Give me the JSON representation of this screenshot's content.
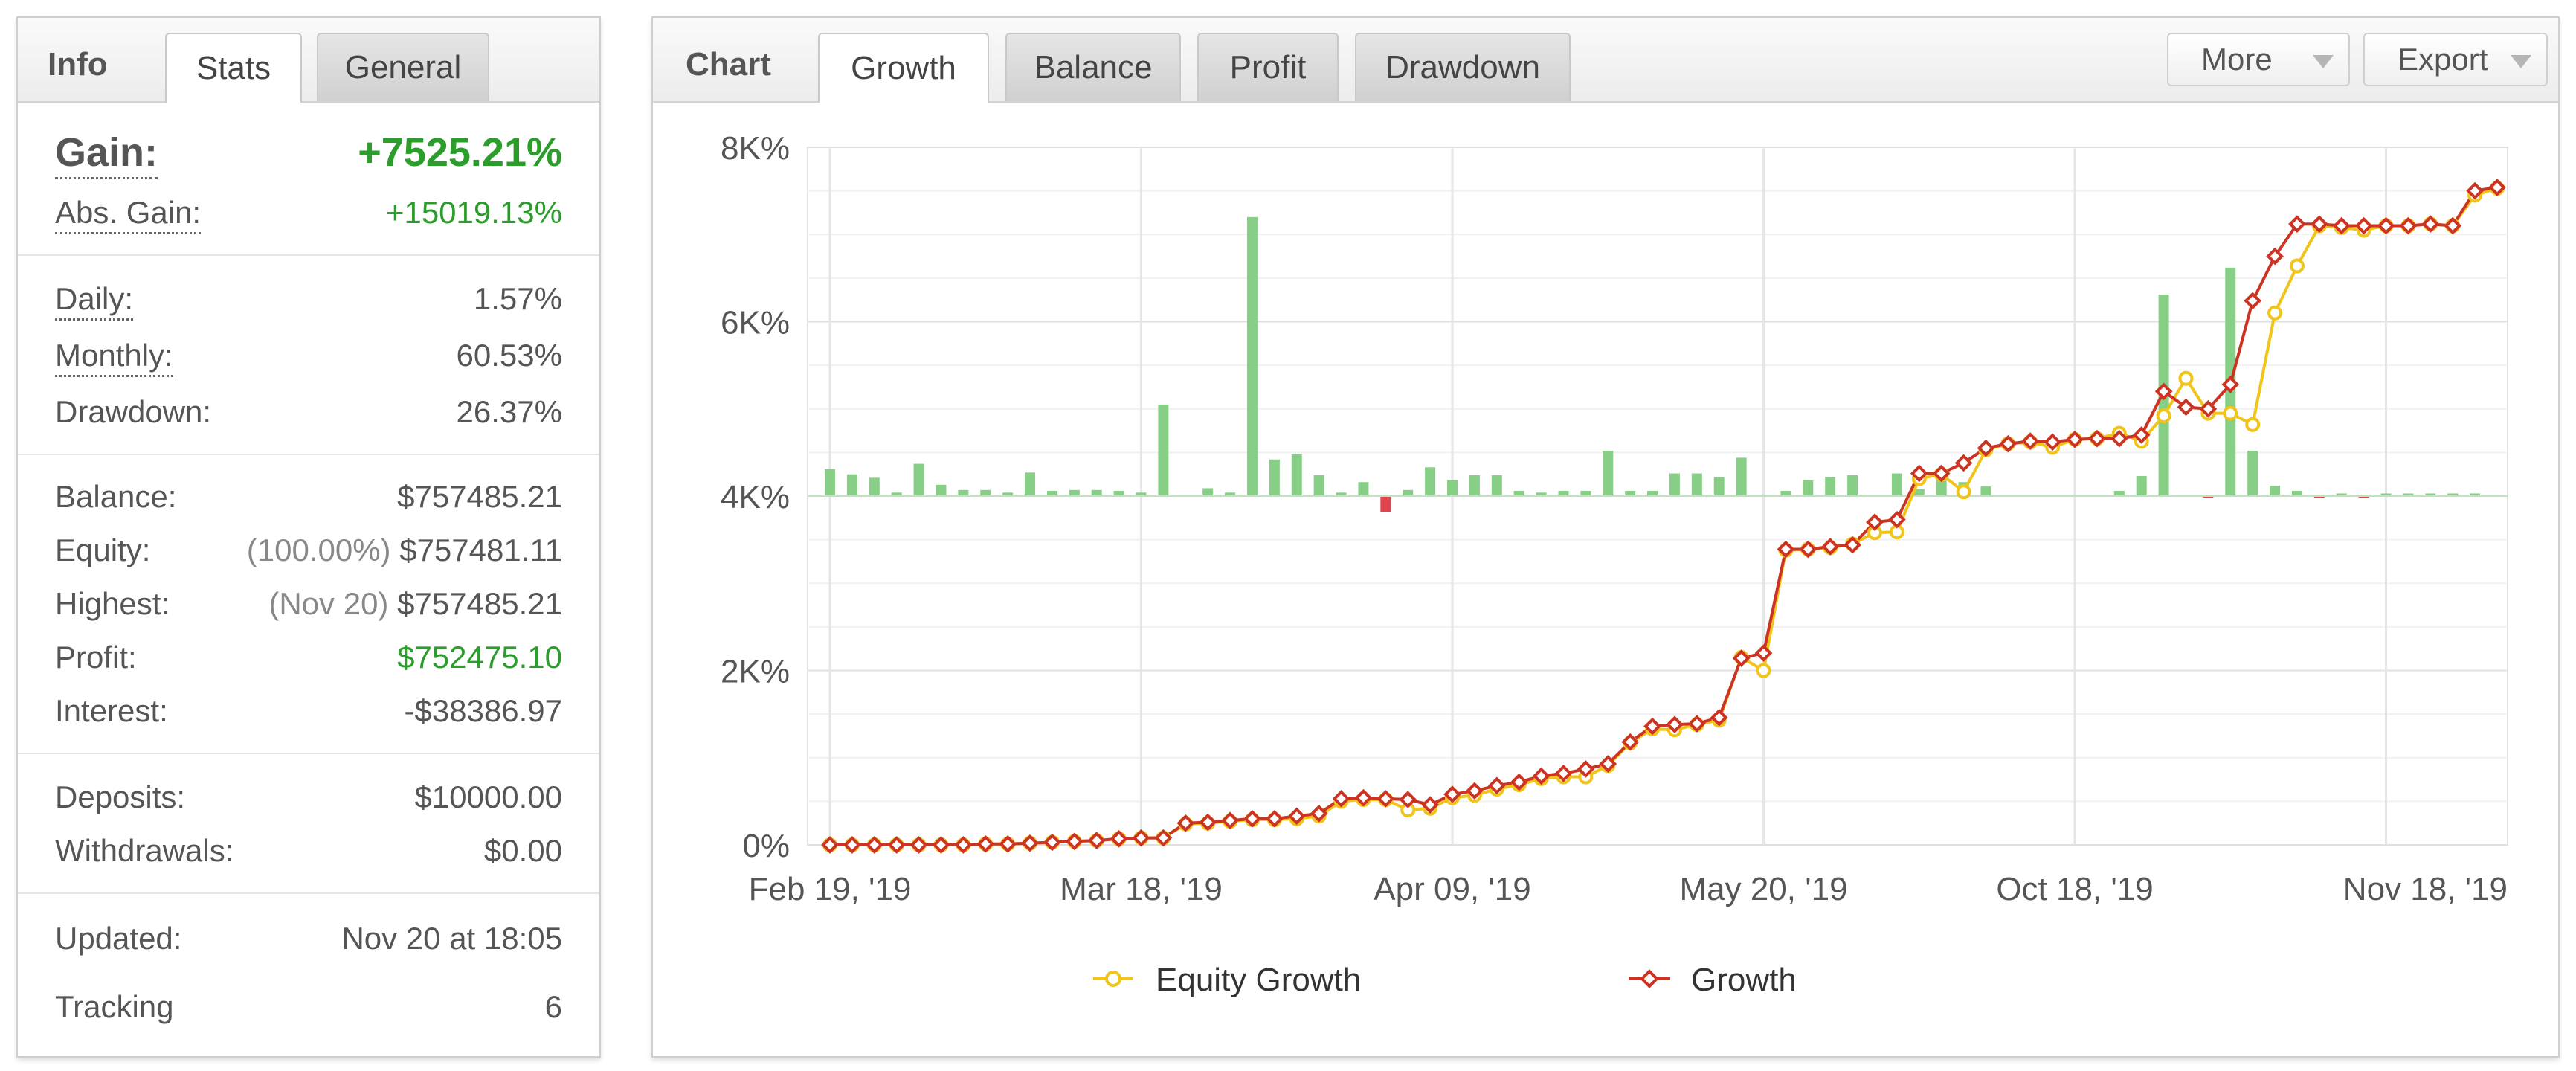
{
  "info_panel": {
    "title": "Info",
    "tabs": [
      "Stats",
      "General"
    ],
    "gain_label": "Gain:",
    "gain_value": "+7525.21%",
    "abs_gain_label": "Abs. Gain:",
    "abs_gain_value": "+15019.13%",
    "daily_label": "Daily:",
    "daily_value": "1.57%",
    "monthly_label": "Monthly:",
    "monthly_value": "60.53%",
    "drawdown_label": "Drawdown:",
    "drawdown_value": "26.37%",
    "balance_label": "Balance:",
    "balance_value": "$757485.21",
    "equity_label": "Equity:",
    "equity_pct": "(100.00%)",
    "equity_value": "$757481.11",
    "highest_label": "Highest:",
    "highest_date": "(Nov 20)",
    "highest_value": "$757485.21",
    "profit_label": "Profit:",
    "profit_value": "$752475.10",
    "interest_label": "Interest:",
    "interest_value": "-$38386.97",
    "deposits_label": "Deposits:",
    "deposits_value": "$10000.00",
    "withdrawals_label": "Withdrawals:",
    "withdrawals_value": "$0.00",
    "updated_label": "Updated:",
    "updated_value": "Nov 20 at 18:05",
    "tracking_label": "Tracking",
    "tracking_value": "6"
  },
  "chart_panel": {
    "title": "Chart",
    "tabs": [
      "Growth",
      "Balance",
      "Profit",
      "Drawdown"
    ],
    "active_tab": "Growth",
    "more_label": "More",
    "export_label": "Export"
  },
  "colors": {
    "equity_line": "#f0c419",
    "growth_line": "#cc3322",
    "bar_positive": "#87cf87",
    "bar_negative": "#e0444c",
    "gain_green": "#2a9d2a"
  },
  "chart_data": {
    "type": "line",
    "y_unit": "%",
    "ylim": [
      0,
      8000
    ],
    "y_ticks": [
      "0%",
      "2K%",
      "4K%",
      "6K%",
      "8K%"
    ],
    "x_tick_labels": [
      "Feb 19, '19",
      "Mar 18, '19",
      "Apr 09, '19",
      "May 20, '19",
      "Oct 18, '19",
      "Nov 18, '19"
    ],
    "x_tick_index": [
      0,
      14,
      28,
      42,
      56,
      70
    ],
    "grid": true,
    "legend_position": "bottom",
    "series": [
      {
        "name": "Equity Growth",
        "marker": "circle",
        "values": [
          0,
          0,
          0,
          0,
          0,
          0,
          0,
          10,
          10,
          20,
          30,
          40,
          50,
          70,
          80,
          80,
          240,
          250,
          270,
          290,
          290,
          300,
          330,
          500,
          520,
          520,
          400,
          420,
          540,
          570,
          640,
          690,
          760,
          780,
          780,
          910,
          1170,
          1330,
          1320,
          1380,
          1430,
          2150,
          2000,
          3380,
          3390,
          3410,
          3450,
          3580,
          3590,
          4200,
          4250,
          4050,
          4530,
          4600,
          4620,
          4560,
          4650,
          4660,
          4720,
          4630,
          4920,
          5350,
          4950,
          4950,
          4820,
          6100,
          6640,
          7100,
          7080,
          7050,
          7100,
          7100,
          7120,
          7100,
          7450,
          7530
        ]
      },
      {
        "name": "Growth",
        "marker": "diamond",
        "values": [
          0,
          0,
          0,
          0,
          0,
          0,
          0,
          10,
          10,
          20,
          30,
          40,
          50,
          70,
          80,
          80,
          250,
          260,
          280,
          300,
          300,
          330,
          360,
          530,
          540,
          530,
          520,
          460,
          580,
          620,
          680,
          720,
          790,
          820,
          870,
          930,
          1180,
          1360,
          1380,
          1390,
          1460,
          2140,
          2200,
          3390,
          3390,
          3420,
          3440,
          3700,
          3730,
          4260,
          4260,
          4380,
          4550,
          4600,
          4630,
          4620,
          4650,
          4660,
          4660,
          4700,
          5200,
          5020,
          5000,
          5280,
          6240,
          6750,
          7120,
          7120,
          7100,
          7100,
          7100,
          7100,
          7120,
          7100,
          7500,
          7540
        ]
      }
    ],
    "daily_bars": [
      310,
      250,
      210,
      40,
      370,
      130,
      70,
      70,
      40,
      270,
      60,
      70,
      70,
      60,
      40,
      1050,
      0,
      90,
      40,
      3200,
      420,
      480,
      240,
      40,
      160,
      -180,
      70,
      330,
      180,
      240,
      240,
      60,
      40,
      60,
      60,
      520,
      60,
      60,
      260,
      260,
      220,
      440,
      0,
      60,
      180,
      220,
      240,
      0,
      260,
      80,
      260,
      160,
      110,
      0,
      0,
      0,
      0,
      0,
      60,
      230,
      2310,
      0,
      -20,
      2620,
      520,
      120,
      60,
      -20,
      30,
      -20,
      30,
      30,
      30,
      30,
      30,
      0
    ]
  }
}
